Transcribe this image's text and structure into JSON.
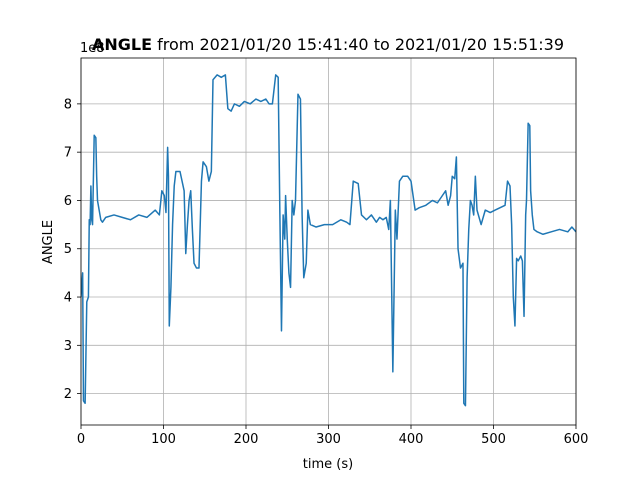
{
  "chart_data": {
    "type": "line",
    "title_bold": "ANGLE",
    "title_rest": " from 2021/01/20 15:41:40 to 2021/01/20 15:51:39",
    "xlabel": "time (s)",
    "ylabel": "ANGLE",
    "y_offset_label": "1e8",
    "xlim": [
      0,
      600
    ],
    "ylim": [
      1.35,
      8.95
    ],
    "x_ticks": [
      0,
      100,
      200,
      300,
      400,
      500,
      600
    ],
    "y_ticks": [
      2,
      3,
      4,
      5,
      6,
      7,
      8
    ],
    "grid": true,
    "series": [
      {
        "color": "#1f77b4",
        "points": [
          [
            0,
            4.0
          ],
          [
            2,
            4.5
          ],
          [
            3,
            1.85
          ],
          [
            5,
            1.8
          ],
          [
            7,
            3.9
          ],
          [
            9,
            4.0
          ],
          [
            10,
            5.6
          ],
          [
            11,
            5.5
          ],
          [
            12,
            6.3
          ],
          [
            13,
            5.6
          ],
          [
            14,
            5.5
          ],
          [
            16,
            7.35
          ],
          [
            18,
            7.3
          ],
          [
            19,
            6.5
          ],
          [
            20,
            6.0
          ],
          [
            22,
            5.8
          ],
          [
            24,
            5.6
          ],
          [
            26,
            5.55
          ],
          [
            30,
            5.65
          ],
          [
            40,
            5.7
          ],
          [
            50,
            5.65
          ],
          [
            60,
            5.6
          ],
          [
            70,
            5.7
          ],
          [
            80,
            5.65
          ],
          [
            90,
            5.8
          ],
          [
            95,
            5.7
          ],
          [
            98,
            6.2
          ],
          [
            101,
            6.1
          ],
          [
            103,
            5.75
          ],
          [
            105,
            7.1
          ],
          [
            106,
            6.5
          ],
          [
            107,
            3.4
          ],
          [
            109,
            4.2
          ],
          [
            111,
            5.5
          ],
          [
            113,
            6.3
          ],
          [
            115,
            6.6
          ],
          [
            120,
            6.6
          ],
          [
            125,
            6.2
          ],
          [
            127,
            4.9
          ],
          [
            129,
            5.5
          ],
          [
            131,
            6.0
          ],
          [
            133,
            6.2
          ],
          [
            135,
            5.4
          ],
          [
            137,
            4.7
          ],
          [
            140,
            4.6
          ],
          [
            143,
            4.6
          ],
          [
            146,
            6.4
          ],
          [
            148,
            6.8
          ],
          [
            152,
            6.7
          ],
          [
            155,
            6.4
          ],
          [
            158,
            6.6
          ],
          [
            160,
            8.5
          ],
          [
            165,
            8.6
          ],
          [
            170,
            8.55
          ],
          [
            175,
            8.6
          ],
          [
            178,
            7.9
          ],
          [
            182,
            7.85
          ],
          [
            186,
            8.0
          ],
          [
            192,
            7.95
          ],
          [
            198,
            8.05
          ],
          [
            205,
            8.0
          ],
          [
            212,
            8.1
          ],
          [
            218,
            8.05
          ],
          [
            224,
            8.1
          ],
          [
            228,
            8.0
          ],
          [
            232,
            8.0
          ],
          [
            236,
            8.6
          ],
          [
            239,
            8.55
          ],
          [
            241,
            5.8
          ],
          [
            243,
            3.3
          ],
          [
            245,
            5.7
          ],
          [
            247,
            5.2
          ],
          [
            248,
            6.1
          ],
          [
            250,
            5.2
          ],
          [
            252,
            4.5
          ],
          [
            254,
            4.2
          ],
          [
            256,
            6.0
          ],
          [
            258,
            5.7
          ],
          [
            260,
            6.0
          ],
          [
            263,
            8.2
          ],
          [
            266,
            8.1
          ],
          [
            268,
            5.7
          ],
          [
            270,
            4.4
          ],
          [
            273,
            4.7
          ],
          [
            275,
            5.8
          ],
          [
            278,
            5.5
          ],
          [
            285,
            5.45
          ],
          [
            295,
            5.5
          ],
          [
            305,
            5.5
          ],
          [
            315,
            5.6
          ],
          [
            322,
            5.55
          ],
          [
            326,
            5.5
          ],
          [
            330,
            6.4
          ],
          [
            336,
            6.35
          ],
          [
            340,
            5.7
          ],
          [
            346,
            5.6
          ],
          [
            352,
            5.7
          ],
          [
            358,
            5.55
          ],
          [
            362,
            5.65
          ],
          [
            366,
            5.6
          ],
          [
            370,
            5.65
          ],
          [
            373,
            5.4
          ],
          [
            375,
            6.0
          ],
          [
            378,
            2.45
          ],
          [
            381,
            5.8
          ],
          [
            383,
            5.2
          ],
          [
            386,
            6.4
          ],
          [
            390,
            6.5
          ],
          [
            396,
            6.5
          ],
          [
            400,
            6.4
          ],
          [
            405,
            5.8
          ],
          [
            410,
            5.85
          ],
          [
            418,
            5.9
          ],
          [
            426,
            6.0
          ],
          [
            432,
            5.95
          ],
          [
            438,
            6.1
          ],
          [
            442,
            6.2
          ],
          [
            445,
            5.9
          ],
          [
            448,
            6.1
          ],
          [
            450,
            6.5
          ],
          [
            453,
            6.45
          ],
          [
            455,
            6.9
          ],
          [
            457,
            5.0
          ],
          [
            460,
            4.6
          ],
          [
            463,
            4.7
          ],
          [
            464,
            1.8
          ],
          [
            466,
            1.75
          ],
          [
            468,
            4.4
          ],
          [
            470,
            5.4
          ],
          [
            472,
            6.0
          ],
          [
            474,
            5.9
          ],
          [
            476,
            5.7
          ],
          [
            478,
            6.5
          ],
          [
            480,
            5.8
          ],
          [
            485,
            5.5
          ],
          [
            490,
            5.8
          ],
          [
            496,
            5.75
          ],
          [
            502,
            5.8
          ],
          [
            508,
            5.85
          ],
          [
            514,
            5.9
          ],
          [
            517,
            6.4
          ],
          [
            520,
            6.3
          ],
          [
            522,
            5.5
          ],
          [
            524,
            4.0
          ],
          [
            526,
            3.4
          ],
          [
            528,
            4.8
          ],
          [
            530,
            4.75
          ],
          [
            533,
            4.85
          ],
          [
            535,
            4.75
          ],
          [
            537,
            3.6
          ],
          [
            539,
            5.7
          ],
          [
            540,
            6.0
          ],
          [
            542,
            7.6
          ],
          [
            544,
            7.55
          ],
          [
            545,
            6.2
          ],
          [
            547,
            5.7
          ],
          [
            549,
            5.4
          ],
          [
            553,
            5.35
          ],
          [
            560,
            5.3
          ],
          [
            570,
            5.35
          ],
          [
            580,
            5.4
          ],
          [
            590,
            5.35
          ],
          [
            595,
            5.45
          ],
          [
            600,
            5.35
          ]
        ]
      }
    ]
  }
}
